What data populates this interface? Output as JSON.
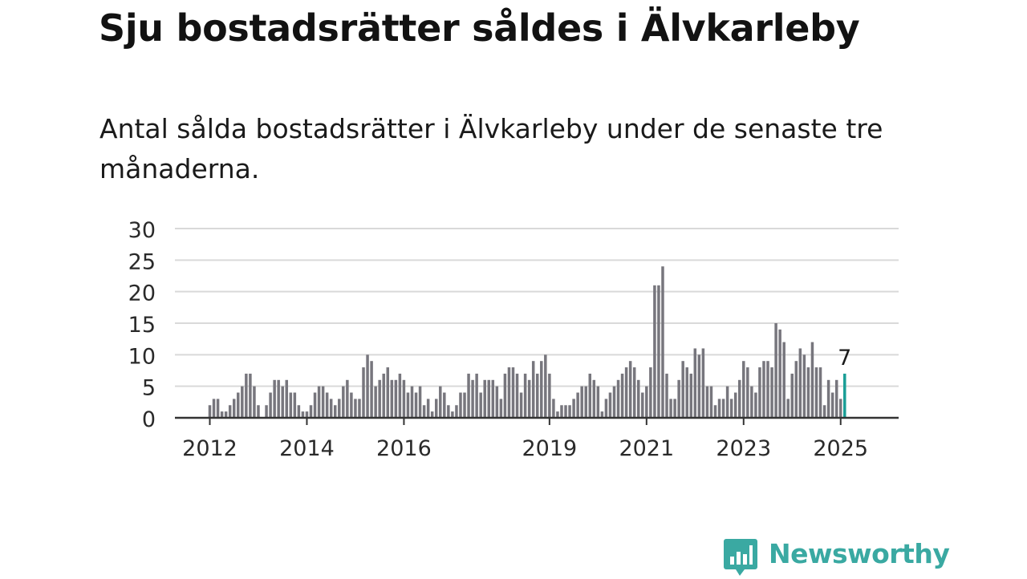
{
  "title": "Sju bostadsrätter såldes i Älvkarleby",
  "subtitle": "Antal sålda bostadsrätter i Älvkarleby under de senaste tre månaderna.",
  "brand": {
    "name": "Newsworthy",
    "color": "#3aa9a2",
    "icon": "bar-chart-speech-bubble-icon"
  },
  "chart_data": {
    "type": "bar",
    "title": "Sju bostadsrätter såldes i Älvkarleby",
    "subtitle": "Antal sålda bostadsrätter i Älvkarleby under de senaste tre månaderna.",
    "xlabel": "",
    "ylabel": "",
    "ylim": [
      0,
      30
    ],
    "yticks": [
      0,
      5,
      10,
      15,
      20,
      25,
      30
    ],
    "x_tick_labels": [
      "2012",
      "2014",
      "2016",
      "2019",
      "2021",
      "2023",
      "2025"
    ],
    "grid": true,
    "legend": "none",
    "bar_color": "#77767d",
    "highlight_color": "#1a9e96",
    "highlight_label": "7",
    "first_month": "2012-01",
    "last_month": "2025-02",
    "values": [
      2,
      3,
      3,
      1,
      1,
      2,
      3,
      4,
      5,
      7,
      7,
      5,
      2,
      0,
      2,
      4,
      6,
      6,
      5,
      6,
      4,
      4,
      2,
      1,
      1,
      2,
      4,
      5,
      5,
      4,
      3,
      2,
      3,
      5,
      6,
      4,
      3,
      3,
      8,
      10,
      9,
      5,
      6,
      7,
      8,
      6,
      6,
      7,
      6,
      4,
      5,
      4,
      5,
      2,
      3,
      1,
      3,
      5,
      4,
      2,
      1,
      2,
      4,
      4,
      7,
      6,
      7,
      4,
      6,
      6,
      6,
      5,
      3,
      7,
      8,
      8,
      7,
      4,
      7,
      6,
      9,
      7,
      9,
      10,
      7,
      3,
      1,
      2,
      2,
      2,
      3,
      4,
      5,
      5,
      7,
      6,
      5,
      1,
      3,
      4,
      5,
      6,
      7,
      8,
      9,
      8,
      6,
      4,
      5,
      8,
      21,
      21,
      24,
      7,
      3,
      3,
      6,
      9,
      8,
      7,
      11,
      10,
      11,
      5,
      5,
      2,
      3,
      3,
      5,
      3,
      4,
      6,
      9,
      8,
      5,
      4,
      8,
      9,
      9,
      8,
      15,
      14,
      12,
      3,
      7,
      9,
      11,
      10,
      8,
      12,
      8,
      8,
      2,
      6,
      4,
      6,
      3,
      7
    ]
  }
}
